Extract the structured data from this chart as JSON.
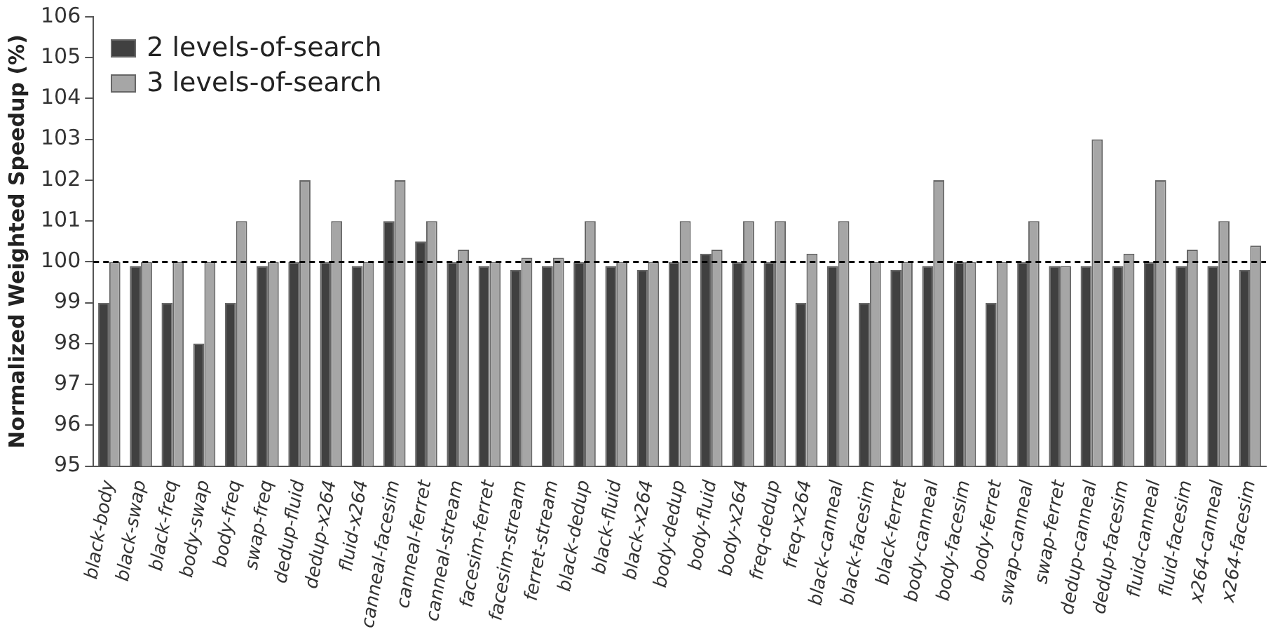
{
  "chart_data": {
    "type": "bar",
    "ylabel": "Normalized Weighted Speedup (%)",
    "categories": [
      "black-body",
      "black-swap",
      "black-freq",
      "body-swap",
      "body-freq",
      "swap-freq",
      "dedup-fluid",
      "dedup-x264",
      "fluid-x264",
      "canneal-facesim",
      "canneal-ferret",
      "canneal-stream",
      "facesim-ferret",
      "facesim-stream",
      "ferret-stream",
      "black-dedup",
      "black-fluid",
      "black-x264",
      "body-dedup",
      "body-fluid",
      "body-x264",
      "freq-dedup",
      "freq-x264",
      "black-canneal",
      "black-facesim",
      "black-ferret",
      "body-canneal",
      "body-facesim",
      "body-ferret",
      "swap-canneal",
      "swap-ferret",
      "dedup-canneal",
      "dedup-facesim",
      "fluid-canneal",
      "fluid-facesim",
      "x264-canneal",
      "x264-facesim"
    ],
    "series": [
      {
        "name": "2 levels-of-search",
        "color": "#404040",
        "values": [
          99,
          99.9,
          99,
          98,
          99,
          99.9,
          100,
          100,
          99.9,
          101,
          100.5,
          100,
          99.9,
          99.8,
          99.9,
          100,
          99.9,
          99.8,
          100,
          100.2,
          100,
          100,
          99,
          99.9,
          99,
          99.8,
          99.9,
          100,
          99,
          100,
          99.9,
          99.9,
          99.9,
          100,
          99.9,
          99.9,
          99.8
        ]
      },
      {
        "name": "3 levels-of-search",
        "color": "#a6a6a6",
        "values": [
          100,
          100,
          100,
          100,
          101,
          100,
          102,
          101,
          100,
          102,
          101,
          100.3,
          100,
          100.1,
          100.1,
          101,
          100,
          100,
          101,
          100.3,
          101,
          101,
          100.2,
          101,
          100,
          100,
          102,
          100,
          100,
          101,
          99.9,
          103,
          100.2,
          102,
          100.3,
          101,
          100.4
        ]
      }
    ],
    "ylim": [
      95,
      106
    ],
    "yticks": [
      95,
      96,
      97,
      98,
      99,
      100,
      101,
      102,
      103,
      104,
      105,
      106
    ],
    "ref_lines": [
      {
        "axis": "y",
        "value": 100,
        "line_style": "dashed",
        "color": "#000000"
      }
    ],
    "legend": "top left",
    "grid": false
  }
}
